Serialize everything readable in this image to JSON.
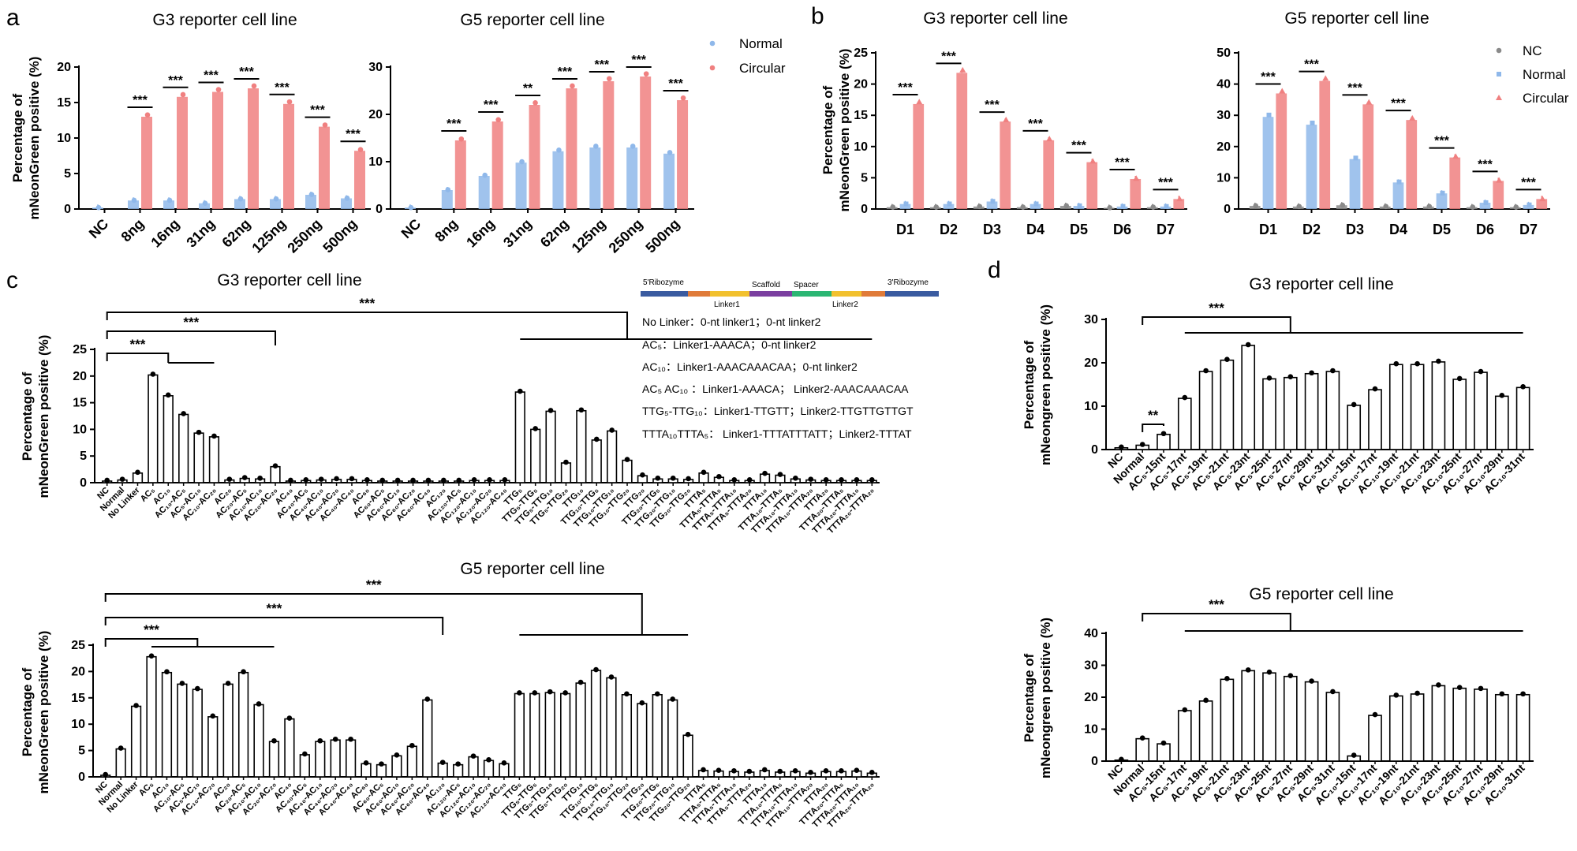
{
  "colors": {
    "normal": "#8fb8ea",
    "circular": "#f08080",
    "nc": "#8a8a8a",
    "black": "#000000"
  },
  "panel_labels": {
    "a": "a",
    "b": "b",
    "c": "c",
    "d": "d"
  },
  "chart_data": [
    {
      "id": "a1",
      "type": "bar",
      "title": "G3 reporter cell line",
      "ylabel": "Percentage of mNeonGreen positive (%)",
      "ylim": [
        0,
        20
      ],
      "yticks": [
        0,
        5,
        10,
        15,
        20
      ],
      "categories": [
        "NC",
        "8ng",
        "16ng",
        "31ng",
        "62ng",
        "125ng",
        "250ng",
        "500ng"
      ],
      "series": [
        {
          "name": "Normal",
          "values": [
            0.2,
            1.2,
            1.2,
            0.8,
            1.4,
            1.4,
            2.0,
            1.5
          ]
        },
        {
          "name": "Circular",
          "values": [
            null,
            13.0,
            15.8,
            16.5,
            17.0,
            14.8,
            11.6,
            8.2
          ]
        }
      ],
      "significance": [
        "***",
        "***",
        "***",
        "***",
        "***",
        "***",
        "***"
      ]
    },
    {
      "id": "a2",
      "type": "bar",
      "title": "G5 reporter cell line",
      "ylabel": "",
      "ylim": [
        0,
        30
      ],
      "yticks": [
        0,
        10,
        20,
        30
      ],
      "categories": [
        "NC",
        "8ng",
        "16ng",
        "31ng",
        "62ng",
        "125ng",
        "250ng",
        "500ng"
      ],
      "series": [
        {
          "name": "Normal",
          "values": [
            0.3,
            4.0,
            7.0,
            9.8,
            12.2,
            13.0,
            13.0,
            11.7
          ]
        },
        {
          "name": "Circular",
          "values": [
            null,
            14.5,
            18.5,
            22.0,
            25.5,
            27.0,
            28.0,
            23.0
          ]
        }
      ],
      "significance": [
        "***",
        "***",
        "**",
        "***",
        "***",
        "***",
        "***"
      ],
      "legend": [
        "Normal",
        "Circular"
      ]
    },
    {
      "id": "b1",
      "type": "bar",
      "title": "G3 reporter cell line",
      "ylabel": "Percentage of mNeonGreen positive (%)",
      "ylim": [
        0,
        25
      ],
      "yticks": [
        0,
        5,
        10,
        15,
        20,
        25
      ],
      "categories": [
        "D1",
        "D2",
        "D3",
        "D4",
        "D5",
        "D6",
        "D7"
      ],
      "series": [
        {
          "name": "NC",
          "values": [
            0.3,
            0.3,
            0.4,
            0.3,
            0.5,
            0.2,
            0.3
          ]
        },
        {
          "name": "Normal",
          "values": [
            0.8,
            0.8,
            1.2,
            0.8,
            0.5,
            0.4,
            0.4
          ]
        },
        {
          "name": "Circular",
          "values": [
            16.8,
            21.8,
            14.0,
            11.0,
            7.5,
            4.8,
            1.6
          ]
        }
      ],
      "significance": [
        "***",
        "***",
        "***",
        "***",
        "***",
        "***",
        "***"
      ]
    },
    {
      "id": "b2",
      "type": "bar",
      "title": "G5 reporter cell line",
      "ylabel": "",
      "ylim": [
        0,
        50
      ],
      "yticks": [
        0,
        10,
        20,
        30,
        40,
        50
      ],
      "categories": [
        "D1",
        "D2",
        "D3",
        "D4",
        "D5",
        "D6",
        "D7"
      ],
      "series": [
        {
          "name": "NC",
          "values": [
            1.0,
            0.8,
            1.2,
            0.8,
            0.8,
            0.6,
            0.6
          ]
        },
        {
          "name": "Normal",
          "values": [
            29.5,
            27.0,
            16.0,
            8.5,
            5.0,
            2.0,
            1.3
          ]
        },
        {
          "name": "Circular",
          "values": [
            37.0,
            41.0,
            33.5,
            28.5,
            16.5,
            9.0,
            3.2
          ]
        }
      ],
      "significance": [
        "***",
        "***",
        "***",
        "***",
        "***",
        "***",
        "***"
      ],
      "legend": [
        "NC",
        "Normal",
        "Circular"
      ]
    },
    {
      "id": "c1",
      "type": "bar",
      "title": "G3 reporter cell line",
      "ylabel": "Percentage of mNeonGreen positive (%)",
      "ylim": [
        0,
        25
      ],
      "yticks": [
        0,
        5,
        10,
        15,
        20,
        25
      ],
      "categories": [
        "NC",
        "Normal",
        "No Linker",
        "AC₅",
        "AC₁₀",
        "AC₁₀-AC₅",
        "AC₅-AC₁₀",
        "AC₁₀-AC₂₀",
        "AC₂₀",
        "AC₂₀-AC₅",
        "AC₁₀-AC₁₀",
        "AC₂₀-AC₂₀",
        "AC₄₀",
        "AC₄₀-AC₅",
        "AC₄₀-AC₁₀",
        "AC₄₀-AC₂₀",
        "AC₄₀-AC₄₀",
        "AC₆₀",
        "AC₆₀-AC₅",
        "AC₆₀-AC₁₀",
        "AC₆₀-AC₂₀",
        "AC₆₀-AC₄₀",
        "AC₁₂₀",
        "AC₁₂₀-AC₅",
        "AC₁₂₀-AC₁₀",
        "AC₁₂₀-AC₂₀",
        "AC₁₂₀-AC₄₀",
        "TTG₅",
        "TTG₅-TTG₅",
        "TTG₅-TTG₁₀",
        "TTG₅-TTG₂₀",
        "TTG₁₀",
        "TTG₁₀-TTG₅",
        "TTG₁₀-TTG₁₀",
        "TTG₁₀-TTG₂₀",
        "TTG₂₀",
        "TTG₂₀-TTG₅",
        "TTG₂₀-TTG₁₀",
        "TTG₂₀-TTG₂₀",
        "TTTA₅",
        "TTTA₅-TTTA₅",
        "TTTA₅-TTTA₁₀",
        "TTTA₅-TTTA₂₀",
        "TTTA₁₀",
        "TTTA₁₀-TTTA₅",
        "TTTA₁₀-TTTA₁₀",
        "TTTA₁₀-TTTA₂₀",
        "TTTA₂₀",
        "TTTA₂₀-TTTA₅",
        "TTTA₂₀-TTTA₁₀",
        "TTTA₂₀-TTTA₂₀"
      ],
      "values": [
        0.3,
        0.5,
        1.8,
        20.2,
        16.3,
        12.8,
        9.3,
        8.6,
        0.5,
        0.8,
        0.7,
        3.0,
        0.3,
        0.4,
        0.5,
        0.6,
        0.6,
        0.4,
        0.3,
        0.3,
        0.3,
        0.3,
        0.3,
        0.3,
        0.4,
        0.4,
        0.4,
        17.0,
        10.0,
        13.4,
        3.7,
        13.5,
        8.0,
        9.7,
        4.2,
        1.3,
        0.7,
        0.7,
        0.6,
        1.8,
        1.0,
        0.4,
        0.4,
        1.6,
        1.4,
        0.7,
        0.5,
        0.4,
        0.4,
        0.4,
        0.4
      ],
      "significance": [
        "***",
        "***",
        "***"
      ]
    },
    {
      "id": "c2",
      "type": "bar",
      "title": "G5 reporter cell line",
      "ylabel": "Percentage of mNeonGreen positive (%)",
      "ylim": [
        0,
        25
      ],
      "yticks": [
        0,
        5,
        10,
        15,
        20,
        25
      ],
      "categories": [
        "NC",
        "Normal",
        "No Linker",
        "AC₅",
        "AC₁₀",
        "AC₁₀-AC₅",
        "AC₅-AC₁₀",
        "AC₁₀-AC₂₀",
        "AC₂₀",
        "AC₂₀-AC₅",
        "AC₁₀-AC₁₀",
        "AC₂₀-AC₂₀",
        "AC₄₀",
        "AC₄₀-AC₅",
        "AC₄₀-AC₁₀",
        "AC₄₀-AC₂₀",
        "AC₄₀-AC₄₀",
        "AC₆₀",
        "AC₆₀-AC₅",
        "AC₆₀-AC₁₀",
        "AC₆₀-AC₂₀",
        "AC₆₀-AC₄₀",
        "AC₁₂₀",
        "AC₁₂₀-AC₅",
        "AC₁₂₀-AC₁₀",
        "AC₁₂₀-AC₂₀",
        "AC₁₂₀-AC₄₀",
        "TTG₅",
        "TTG₅-TTG₅",
        "TTG₅-TTG₁₀",
        "TTG₅-TTG₂₀",
        "TTG₁₀",
        "TTG₁₀-TTG₅",
        "TTG₁₀-TTG₁₀",
        "TTG₁₀-TTG₂₀",
        "TTG₂₀",
        "TTG₂₀-TTG₅",
        "TTG₂₀-TTG₁₀",
        "TTG₂₀-TTG₂₀",
        "TTTA₅",
        "TTTA₅-TTTA₅",
        "TTTA₅-TTTA₁₀",
        "TTTA₅-TTTA₂₀",
        "TTTA₁₀",
        "TTTA₁₀-TTTA₅",
        "TTTA₁₀-TTTA₁₀",
        "TTTA₁₀-TTTA₂₀",
        "TTTA₂₀",
        "TTTA₂₀-TTTA₅",
        "TTTA₂₀-TTTA₁₀",
        "TTTA₂₀-TTTA₂₀"
      ],
      "values": [
        0.3,
        5.3,
        13.4,
        22.8,
        19.8,
        17.6,
        16.6,
        11.4,
        17.6,
        19.8,
        13.7,
        6.7,
        11.0,
        4.2,
        6.7,
        7.0,
        7.0,
        2.5,
        2.3,
        4.0,
        5.8,
        14.6,
        2.6,
        2.3,
        3.8,
        3.1,
        2.5,
        15.8,
        15.8,
        16.0,
        15.8,
        17.8,
        20.2,
        18.8,
        15.6,
        13.9,
        15.6,
        14.6,
        7.9,
        1.2,
        1.1,
        1.0,
        0.9,
        1.2,
        0.9,
        1.0,
        0.7,
        1.0,
        1.0,
        1.1,
        0.7
      ],
      "significance": [
        "***",
        "***",
        "***"
      ]
    },
    {
      "id": "d1",
      "type": "bar",
      "title": "G3 reporter cell line",
      "ylabel": "Percentage of mNeongreen positive (%)",
      "ylim": [
        0,
        30
      ],
      "yticks": [
        0,
        10,
        20,
        30
      ],
      "categories": [
        "NC",
        "Normal",
        "AC₅-15nt",
        "AC₅-17nt",
        "AC₅-19nt",
        "AC₅-21nt",
        "AC₅-23nt",
        "AC₅-25nt",
        "AC₅-27nt",
        "AC₅-29nt",
        "AC₅-31nt",
        "AC₁₀-15nt",
        "AC₁₀-17nt",
        "AC₁₀-19nt",
        "AC₁₀-21nt",
        "AC₁₀-23nt",
        "AC₁₀-25nt",
        "AC₁₀-27nt",
        "AC₁₀-29nt",
        "AC₁₀-31nt"
      ],
      "values": [
        0.4,
        1.0,
        3.5,
        11.8,
        18.0,
        20.6,
        24.0,
        16.3,
        16.6,
        17.5,
        18.0,
        10.2,
        13.8,
        19.6,
        19.6,
        20.2,
        16.2,
        17.8,
        12.3,
        14.3
      ],
      "significance": [
        "***",
        "**"
      ]
    },
    {
      "id": "d2",
      "type": "bar",
      "title": "G5 reporter cell line",
      "ylabel": "Percentage of mNeongreen positive (%)",
      "ylim": [
        0,
        40
      ],
      "yticks": [
        0,
        10,
        20,
        30,
        40
      ],
      "categories": [
        "NC",
        "Normal",
        "AC₅-15nt",
        "AC₅-17nt",
        "AC₅-19nt",
        "AC₅-21nt",
        "AC₅-23nt",
        "AC₅-25nt",
        "AC₅-27nt",
        "AC₅-29nt",
        "AC₅-31nt",
        "AC₁₀-15nt",
        "AC₁₀-17nt",
        "AC₁₀-19nt",
        "AC₁₀-21nt",
        "AC₁₀-23nt",
        "AC₁₀-25nt",
        "AC₁₀-27nt",
        "AC₁₀-29nt",
        "AC₁₀-31nt"
      ],
      "values": [
        0.3,
        7.0,
        5.4,
        15.8,
        18.8,
        25.6,
        28.3,
        27.6,
        26.5,
        24.8,
        21.5,
        1.6,
        14.3,
        20.4,
        21.0,
        23.6,
        22.8,
        22.5,
        20.8,
        20.8
      ],
      "significance": [
        "***"
      ]
    }
  ],
  "construct": {
    "segments": [
      "5'Ribozyme",
      "Linker1",
      "Scaffold",
      "Spacer",
      "Linker2",
      "3'Ribozyme"
    ],
    "lines": [
      "No Linker：0-nt linker1；0-nt linker2",
      "AC₅：Linker1-AAACA；0-nt linker2",
      "AC₁₀：Linker1-AAACAAACAA；0-nt linker2",
      "AC₅ AC₁₀ ：Linker1-AAACA； Linker2-AAACAAACAA",
      "TTG₅-TTG₁₀：Linker1-TTGTT；Linker2-TTGTTGTTGT",
      "TTTA₁₀TTTA₅： Linker1-TTTATTTATT；Linker2-TTTAT"
    ]
  }
}
